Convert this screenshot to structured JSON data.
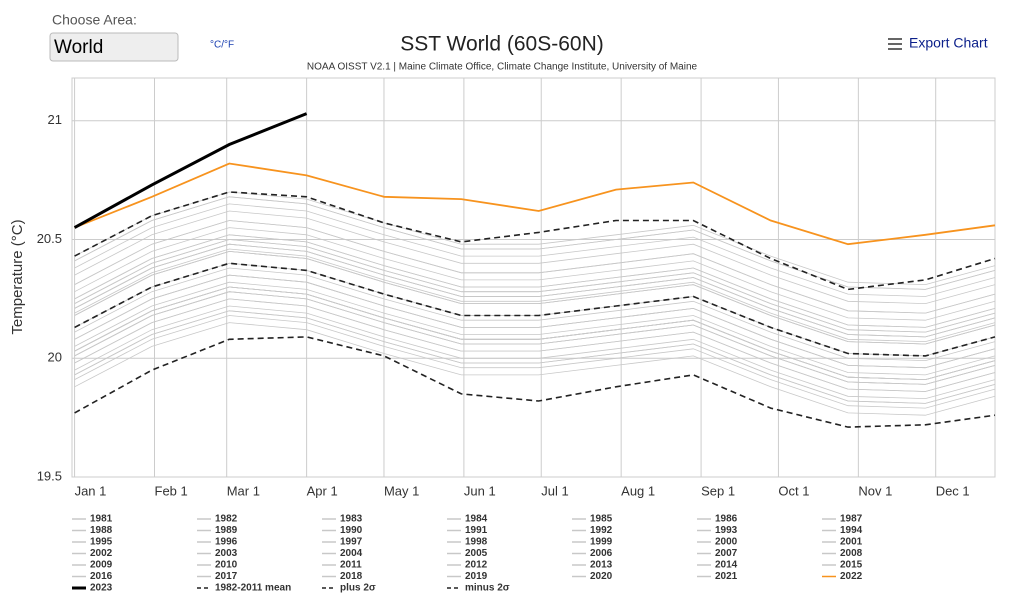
{
  "ui": {
    "choose_area_label": "Choose Area:",
    "area_value": "World",
    "units_toggle": "°C/°F",
    "export_label": "Export Chart"
  },
  "chart_data": {
    "type": "line",
    "title": "SST World (60S-60N)",
    "subtitle": "NOAA OISST V2.1 | Maine Climate Office, Climate Change Institute, University of Maine",
    "y_label": "Temperature (°C)",
    "x": [
      0,
      30,
      60,
      90,
      120,
      150,
      180,
      210,
      240,
      270,
      300,
      330,
      357
    ],
    "xlim": [
      -1,
      357
    ],
    "xticks": [
      {
        "value": 0,
        "label": "Jan 1"
      },
      {
        "value": 31,
        "label": "Feb 1"
      },
      {
        "value": 59,
        "label": "Mar 1"
      },
      {
        "value": 90,
        "label": "Apr 1"
      },
      {
        "value": 120,
        "label": "May 1"
      },
      {
        "value": 151,
        "label": "Jun 1"
      },
      {
        "value": 181,
        "label": "Jul 1"
      },
      {
        "value": 212,
        "label": "Aug 1"
      },
      {
        "value": 243,
        "label": "Sep 1"
      },
      {
        "value": 273,
        "label": "Oct 1"
      },
      {
        "value": 304,
        "label": "Nov 1"
      },
      {
        "value": 334,
        "label": "Dec 1"
      }
    ],
    "ylim": [
      19.5,
      21.18
    ],
    "yticks": [
      19.5,
      20,
      20.5,
      21
    ],
    "grid": true,
    "series": [
      {
        "name": "1981",
        "color": "#c8c8c8",
        "values": [
          19.98,
          20.15,
          20.25,
          20.22,
          20.12,
          20.03,
          20.03,
          20.07,
          20.11,
          19.98,
          19.87,
          19.86,
          19.94
        ]
      },
      {
        "name": "1982",
        "color": "#c8c8c8",
        "values": [
          19.93,
          20.1,
          20.2,
          20.17,
          20.07,
          19.98,
          19.98,
          20.02,
          20.06,
          19.93,
          19.82,
          19.81,
          19.89
        ]
      },
      {
        "name": "1983",
        "color": "#c8c8c8",
        "values": [
          20.03,
          20.2,
          20.3,
          20.27,
          20.17,
          20.08,
          20.08,
          20.12,
          20.16,
          20.03,
          19.92,
          19.91,
          19.99
        ]
      },
      {
        "name": "1984",
        "color": "#c8c8c8",
        "values": [
          19.91,
          20.08,
          20.18,
          20.15,
          20.05,
          19.96,
          19.96,
          20.0,
          20.04,
          19.91,
          19.8,
          19.79,
          19.87
        ]
      },
      {
        "name": "1985",
        "color": "#c8c8c8",
        "values": [
          19.88,
          20.05,
          20.15,
          20.12,
          20.02,
          19.93,
          19.93,
          19.97,
          20.01,
          19.88,
          19.77,
          19.76,
          19.84
        ]
      },
      {
        "name": "1986",
        "color": "#c8c8c8",
        "values": [
          19.95,
          20.12,
          20.22,
          20.19,
          20.09,
          20.0,
          20.0,
          20.04,
          20.08,
          19.95,
          19.84,
          19.83,
          19.91
        ]
      },
      {
        "name": "1987",
        "color": "#c8c8c8",
        "values": [
          20.08,
          20.25,
          20.35,
          20.32,
          20.22,
          20.13,
          20.13,
          20.17,
          20.21,
          20.08,
          19.97,
          19.96,
          20.04
        ]
      },
      {
        "name": "1988",
        "color": "#c8c8c8",
        "values": [
          20.03,
          20.2,
          20.3,
          20.27,
          20.17,
          20.08,
          20.08,
          20.12,
          20.16,
          20.03,
          19.92,
          19.91,
          19.99
        ]
      },
      {
        "name": "1989",
        "color": "#c8c8c8",
        "values": [
          19.93,
          20.1,
          20.2,
          20.17,
          20.07,
          19.98,
          19.98,
          20.02,
          20.06,
          19.93,
          19.82,
          19.81,
          19.89
        ]
      },
      {
        "name": "1990",
        "color": "#c8c8c8",
        "values": [
          20.05,
          20.22,
          20.32,
          20.29,
          20.19,
          20.1,
          20.1,
          20.14,
          20.18,
          20.05,
          19.94,
          19.93,
          20.01
        ]
      },
      {
        "name": "1991",
        "color": "#c8c8c8",
        "values": [
          20.01,
          20.18,
          20.28,
          20.25,
          20.15,
          20.06,
          20.06,
          20.1,
          20.14,
          20.01,
          19.9,
          19.89,
          19.97
        ]
      },
      {
        "name": "1992",
        "color": "#c8c8c8",
        "values": [
          19.98,
          20.15,
          20.25,
          20.22,
          20.12,
          20.03,
          20.03,
          20.07,
          20.11,
          19.98,
          19.87,
          19.86,
          19.94
        ]
      },
      {
        "name": "1993",
        "color": "#c8c8c8",
        "values": [
          20.01,
          20.18,
          20.28,
          20.25,
          20.15,
          20.06,
          20.06,
          20.1,
          20.14,
          20.01,
          19.9,
          19.89,
          19.97
        ]
      },
      {
        "name": "1994",
        "color": "#c8c8c8",
        "values": [
          20.03,
          20.2,
          20.3,
          20.27,
          20.17,
          20.08,
          20.08,
          20.12,
          20.16,
          20.03,
          19.92,
          19.91,
          19.99
        ]
      },
      {
        "name": "1995",
        "color": "#c8c8c8",
        "values": [
          20.08,
          20.25,
          20.35,
          20.32,
          20.22,
          20.13,
          20.13,
          20.17,
          20.21,
          20.08,
          19.97,
          19.96,
          20.04
        ]
      },
      {
        "name": "1996",
        "color": "#c8c8c8",
        "values": [
          20.01,
          20.18,
          20.28,
          20.25,
          20.15,
          20.06,
          20.06,
          20.1,
          20.14,
          20.01,
          19.9,
          19.89,
          19.97
        ]
      },
      {
        "name": "1997",
        "color": "#c8c8c8",
        "values": [
          20.18,
          20.35,
          20.45,
          20.42,
          20.32,
          20.23,
          20.23,
          20.27,
          20.31,
          20.18,
          20.07,
          20.06,
          20.14
        ]
      },
      {
        "name": "1998",
        "color": "#c8c8c8",
        "values": [
          20.25,
          20.42,
          20.52,
          20.49,
          20.39,
          20.3,
          20.3,
          20.34,
          20.38,
          20.25,
          20.14,
          20.13,
          20.21
        ]
      },
      {
        "name": "1999",
        "color": "#c8c8c8",
        "values": [
          20.03,
          20.2,
          20.3,
          20.27,
          20.17,
          20.08,
          20.08,
          20.12,
          20.16,
          20.03,
          19.92,
          19.91,
          19.99
        ]
      },
      {
        "name": "2000",
        "color": "#c8c8c8",
        "values": [
          20.03,
          20.2,
          20.3,
          20.27,
          20.17,
          20.08,
          20.08,
          20.12,
          20.16,
          20.03,
          19.92,
          19.91,
          19.99
        ]
      },
      {
        "name": "2001",
        "color": "#c8c8c8",
        "values": [
          20.13,
          20.3,
          20.4,
          20.37,
          20.27,
          20.18,
          20.18,
          20.22,
          20.26,
          20.13,
          20.02,
          20.01,
          20.09
        ]
      },
      {
        "name": "2002",
        "color": "#c8c8c8",
        "values": [
          20.18,
          20.35,
          20.45,
          20.42,
          20.32,
          20.23,
          20.23,
          20.27,
          20.31,
          20.18,
          20.07,
          20.06,
          20.14
        ]
      },
      {
        "name": "2003",
        "color": "#c8c8c8",
        "values": [
          20.21,
          20.38,
          20.48,
          20.45,
          20.35,
          20.26,
          20.26,
          20.3,
          20.34,
          20.21,
          20.1,
          20.09,
          20.17
        ]
      },
      {
        "name": "2004",
        "color": "#c8c8c8",
        "values": [
          20.18,
          20.35,
          20.45,
          20.42,
          20.32,
          20.23,
          20.23,
          20.27,
          20.31,
          20.18,
          20.07,
          20.06,
          20.14
        ]
      },
      {
        "name": "2005",
        "color": "#c8c8c8",
        "values": [
          20.23,
          20.4,
          20.5,
          20.47,
          20.37,
          20.28,
          20.28,
          20.32,
          20.36,
          20.23,
          20.12,
          20.11,
          20.19
        ]
      },
      {
        "name": "2006",
        "color": "#c8c8c8",
        "values": [
          20.19,
          20.36,
          20.46,
          20.43,
          20.33,
          20.24,
          20.24,
          20.28,
          20.32,
          20.19,
          20.08,
          20.07,
          20.15
        ]
      },
      {
        "name": "2007",
        "color": "#c8c8c8",
        "values": [
          20.11,
          20.28,
          20.38,
          20.35,
          20.25,
          20.16,
          20.16,
          20.2,
          20.24,
          20.11,
          20.0,
          19.99,
          20.07
        ]
      },
      {
        "name": "2008",
        "color": "#c8c8c8",
        "values": [
          20.08,
          20.25,
          20.35,
          20.32,
          20.22,
          20.13,
          20.13,
          20.17,
          20.21,
          20.08,
          19.97,
          19.96,
          20.04
        ]
      },
      {
        "name": "2009",
        "color": "#c8c8c8",
        "values": [
          20.23,
          20.4,
          20.5,
          20.47,
          20.37,
          20.28,
          20.28,
          20.32,
          20.36,
          20.23,
          20.12,
          20.11,
          20.19
        ]
      },
      {
        "name": "2010",
        "color": "#c8c8c8",
        "values": [
          20.25,
          20.42,
          20.52,
          20.49,
          20.39,
          20.3,
          20.3,
          20.34,
          20.38,
          20.25,
          20.14,
          20.13,
          20.21
        ]
      },
      {
        "name": "2011",
        "color": "#c8c8c8",
        "values": [
          20.13,
          20.3,
          20.4,
          20.37,
          20.27,
          20.18,
          20.18,
          20.22,
          20.26,
          20.13,
          20.02,
          20.01,
          20.09
        ]
      },
      {
        "name": "2012",
        "color": "#c8c8c8",
        "values": [
          20.21,
          20.38,
          20.48,
          20.45,
          20.35,
          20.26,
          20.26,
          20.3,
          20.34,
          20.21,
          20.1,
          20.09,
          20.17
        ]
      },
      {
        "name": "2013",
        "color": "#c8c8c8",
        "values": [
          20.21,
          20.38,
          20.48,
          20.45,
          20.35,
          20.26,
          20.26,
          20.3,
          20.34,
          20.21,
          20.1,
          20.09,
          20.17
        ]
      },
      {
        "name": "2014",
        "color": "#c8c8c8",
        "values": [
          20.28,
          20.45,
          20.55,
          20.52,
          20.42,
          20.33,
          20.33,
          20.37,
          20.41,
          20.28,
          20.17,
          20.16,
          20.24
        ]
      },
      {
        "name": "2015",
        "color": "#c8c8c8",
        "values": [
          20.38,
          20.55,
          20.65,
          20.62,
          20.52,
          20.43,
          20.43,
          20.47,
          20.51,
          20.38,
          20.27,
          20.26,
          20.34
        ]
      },
      {
        "name": "2016",
        "color": "#c8c8c8",
        "values": [
          20.43,
          20.6,
          20.7,
          20.67,
          20.57,
          20.48,
          20.48,
          20.52,
          20.56,
          20.43,
          20.32,
          20.31,
          20.39
        ]
      },
      {
        "name": "2017",
        "color": "#c8c8c8",
        "values": [
          20.35,
          20.52,
          20.62,
          20.59,
          20.49,
          20.4,
          20.4,
          20.44,
          20.48,
          20.35,
          20.24,
          20.23,
          20.31
        ]
      },
      {
        "name": "2018",
        "color": "#c8c8c8",
        "values": [
          20.31,
          20.48,
          20.58,
          20.55,
          20.45,
          20.36,
          20.36,
          20.4,
          20.44,
          20.31,
          20.2,
          20.19,
          20.27
        ]
      },
      {
        "name": "2019",
        "color": "#c8c8c8",
        "values": [
          20.41,
          20.58,
          20.68,
          20.65,
          20.55,
          20.46,
          20.46,
          20.5,
          20.54,
          20.41,
          20.3,
          20.29,
          20.37
        ]
      },
      {
        "name": "2020",
        "color": "#c8c8c8",
        "values": [
          20.41,
          20.58,
          20.68,
          20.65,
          20.55,
          20.46,
          20.46,
          20.5,
          20.54,
          20.41,
          20.3,
          20.29,
          20.37
        ]
      },
      {
        "name": "2021",
        "color": "#c8c8c8",
        "values": [
          20.31,
          20.48,
          20.58,
          20.55,
          20.45,
          20.36,
          20.36,
          20.4,
          20.44,
          20.31,
          20.2,
          20.19,
          20.27
        ]
      },
      {
        "name": "2022",
        "color": "#f7931e",
        "values": [
          20.55,
          20.68,
          20.82,
          20.77,
          20.68,
          20.67,
          20.62,
          20.71,
          20.74,
          20.58,
          20.48,
          20.52,
          20.56
        ]
      },
      {
        "name": "2023",
        "color": "#000000",
        "bold": true,
        "values": [
          20.55,
          20.73,
          20.9,
          21.03,
          null,
          null,
          null,
          null,
          null,
          null,
          null,
          null,
          null
        ]
      },
      {
        "name": "1982-2011 mean",
        "color": "#222222",
        "dash": true,
        "values": [
          20.13,
          20.3,
          20.4,
          20.37,
          20.27,
          20.18,
          20.18,
          20.22,
          20.26,
          20.13,
          20.02,
          20.01,
          20.09
        ]
      },
      {
        "name": "plus 2σ",
        "color": "#222222",
        "dash": true,
        "values": [
          20.43,
          20.6,
          20.7,
          20.68,
          20.57,
          20.49,
          20.53,
          20.58,
          20.58,
          20.42,
          20.29,
          20.33,
          20.42
        ]
      },
      {
        "name": "minus 2σ",
        "color": "#222222",
        "dash": true,
        "values": [
          19.77,
          19.95,
          20.08,
          20.09,
          20.01,
          19.85,
          19.82,
          19.88,
          19.93,
          19.79,
          19.71,
          19.72,
          19.76
        ]
      }
    ]
  }
}
